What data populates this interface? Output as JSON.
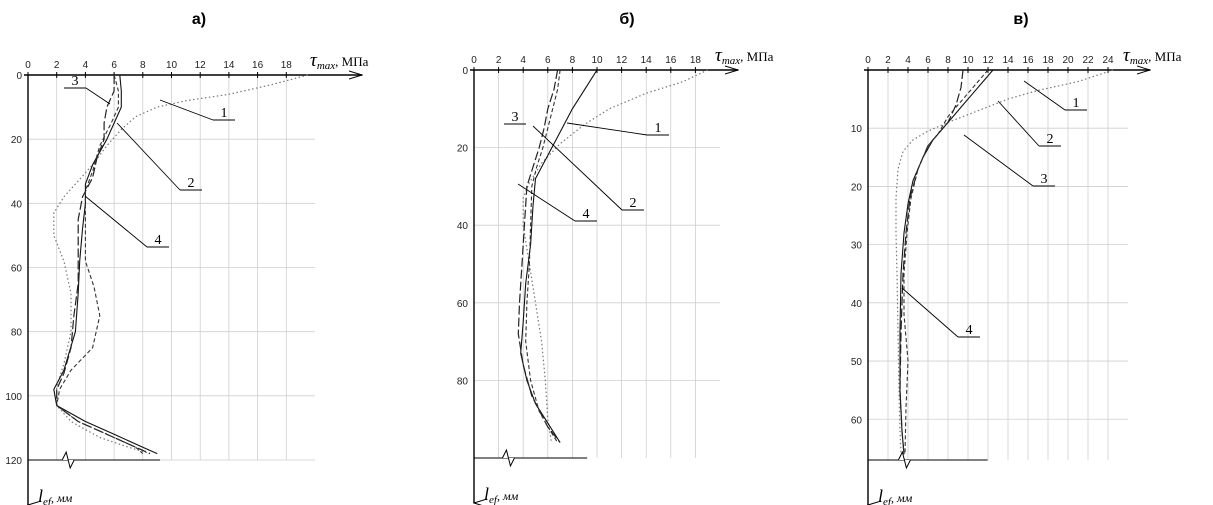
{
  "axes_text": {
    "x_symbol": "τ",
    "x_sub": "max",
    "x_unit": ", МПа",
    "y_symbol": "l",
    "y_sub": "ef",
    "y_unit": ", мм"
  },
  "chart_data": [
    {
      "type": "line",
      "title": "а)",
      "xlim": [
        0,
        20
      ],
      "ylim": [
        0,
        120
      ],
      "x_ticks": [
        0,
        2,
        4,
        6,
        8,
        10,
        12,
        14,
        16,
        18
      ],
      "y_ticks": [
        0,
        20,
        40,
        60,
        80,
        100,
        120
      ],
      "series": [
        {
          "name": "1",
          "points": [
            [
              19.5,
              0
            ],
            [
              17,
              3
            ],
            [
              14,
              6
            ],
            [
              11,
              8
            ],
            [
              9,
              10
            ],
            [
              7.5,
              13
            ],
            [
              6.5,
              17
            ],
            [
              5.5,
              22
            ],
            [
              4.5,
              28
            ],
            [
              3.5,
              33
            ],
            [
              2.5,
              38
            ],
            [
              1.8,
              43
            ],
            [
              1.8,
              50
            ],
            [
              2.5,
              58
            ],
            [
              3,
              68
            ],
            [
              3,
              80
            ],
            [
              2.5,
              90
            ],
            [
              2,
              97
            ],
            [
              2,
              103
            ],
            [
              3,
              108
            ],
            [
              5,
              113
            ],
            [
              7,
              116
            ],
            [
              8.5,
              118
            ]
          ]
        },
        {
          "name": "2",
          "points": [
            [
              6.4,
              0
            ],
            [
              6.5,
              5
            ],
            [
              6.5,
              10
            ],
            [
              6,
              15
            ],
            [
              5.5,
              20
            ],
            [
              4.5,
              28
            ],
            [
              4,
              34
            ],
            [
              4,
              40
            ],
            [
              3.8,
              48
            ],
            [
              3.6,
              58
            ],
            [
              3.5,
              68
            ],
            [
              3.3,
              80
            ],
            [
              2.5,
              92
            ],
            [
              1.8,
              98
            ],
            [
              2,
              103
            ],
            [
              4,
              108
            ],
            [
              6,
              112
            ],
            [
              8,
              116
            ],
            [
              9,
              118
            ]
          ]
        },
        {
          "name": "3",
          "points": [
            [
              6,
              0
            ],
            [
              6,
              5
            ],
            [
              5.5,
              10
            ],
            [
              5.3,
              15
            ],
            [
              5.3,
              20
            ],
            [
              4.8,
              26
            ],
            [
              4.5,
              32
            ],
            [
              3.8,
              38
            ],
            [
              3.5,
              45
            ],
            [
              3.5,
              55
            ],
            [
              3.5,
              65
            ],
            [
              3.2,
              75
            ],
            [
              3,
              85
            ],
            [
              2.5,
              93
            ],
            [
              2,
              98
            ],
            [
              2,
              103
            ],
            [
              3.5,
              108
            ],
            [
              5.5,
              112
            ],
            [
              7.5,
              116
            ],
            [
              8.5,
              118
            ]
          ]
        },
        {
          "name": "4",
          "points": [
            [
              6,
              0
            ],
            [
              6.3,
              5
            ],
            [
              6.3,
              10
            ],
            [
              5.8,
              15
            ],
            [
              5,
              22
            ],
            [
              4.5,
              30
            ],
            [
              4,
              36
            ],
            [
              4,
              42
            ],
            [
              4,
              50
            ],
            [
              4,
              58
            ],
            [
              4.6,
              66
            ],
            [
              5,
              75
            ],
            [
              4.5,
              85
            ],
            [
              3,
              92
            ],
            [
              2.2,
              98
            ],
            [
              2,
              103
            ],
            [
              3.5,
              108
            ],
            [
              5.5,
              112
            ],
            [
              7.5,
              116
            ],
            [
              8,
              118
            ]
          ]
        }
      ],
      "callouts": [
        "1",
        "2",
        "3",
        "4"
      ]
    },
    {
      "type": "line",
      "title": "б)",
      "xlim": [
        0,
        20
      ],
      "ylim": [
        0,
        100
      ],
      "x_ticks": [
        0,
        2,
        4,
        6,
        8,
        10,
        12,
        14,
        16,
        18
      ],
      "y_ticks": [
        0,
        20,
        40,
        60,
        80
      ],
      "series": [
        {
          "name": "1",
          "points": [
            [
              19,
              0
            ],
            [
              17,
              3
            ],
            [
              14,
              6
            ],
            [
              11,
              10
            ],
            [
              9,
              14
            ],
            [
              7,
              19
            ],
            [
              5.5,
              24
            ],
            [
              4.5,
              29
            ],
            [
              4,
              33
            ],
            [
              4,
              40
            ],
            [
              4.5,
              50
            ],
            [
              5,
              60
            ],
            [
              5.5,
              70
            ],
            [
              5.8,
              80
            ],
            [
              6,
              90
            ],
            [
              6.3,
              96
            ]
          ]
        },
        {
          "name": "2",
          "points": [
            [
              10,
              0
            ],
            [
              9,
              5
            ],
            [
              8,
              10
            ],
            [
              7,
              16
            ],
            [
              6,
              22
            ],
            [
              5,
              28
            ],
            [
              4.8,
              35
            ],
            [
              4.6,
              45
            ],
            [
              4.2,
              55
            ],
            [
              4,
              65
            ],
            [
              3.8,
              73
            ],
            [
              4.3,
              80
            ],
            [
              5,
              86
            ],
            [
              6,
              91
            ],
            [
              7,
              96
            ]
          ]
        },
        {
          "name": "3",
          "points": [
            [
              6.8,
              0
            ],
            [
              6.5,
              5
            ],
            [
              6,
              10
            ],
            [
              5.7,
              15
            ],
            [
              5.3,
              20
            ],
            [
              4.8,
              25
            ],
            [
              4.3,
              30
            ],
            [
              4.1,
              40
            ],
            [
              3.9,
              50
            ],
            [
              3.7,
              60
            ],
            [
              3.6,
              68
            ],
            [
              4,
              76
            ],
            [
              4.7,
              84
            ],
            [
              6,
              92
            ],
            [
              7,
              96
            ]
          ]
        },
        {
          "name": "4",
          "points": [
            [
              7,
              0
            ],
            [
              6.8,
              5
            ],
            [
              6.4,
              10
            ],
            [
              6,
              15
            ],
            [
              5.6,
              20
            ],
            [
              5.1,
              25
            ],
            [
              4.7,
              30
            ],
            [
              4.6,
              40
            ],
            [
              4.5,
              50
            ],
            [
              4.3,
              60
            ],
            [
              4.2,
              70
            ],
            [
              4.6,
              80
            ],
            [
              5.3,
              88
            ],
            [
              6.2,
              93
            ],
            [
              6.8,
              96
            ]
          ]
        }
      ],
      "callouts": [
        "1",
        "2",
        "3",
        "4"
      ]
    },
    {
      "type": "line",
      "title": "в)",
      "xlim": [
        0,
        26
      ],
      "ylim": [
        0,
        67
      ],
      "x_ticks": [
        0,
        2,
        4,
        6,
        8,
        10,
        12,
        14,
        16,
        18,
        20,
        22,
        24
      ],
      "y_ticks": [
        10,
        20,
        30,
        40,
        50,
        60
      ],
      "series": [
        {
          "name": "1",
          "points": [
            [
              24.5,
              0
            ],
            [
              21,
              2
            ],
            [
              17,
              3.5
            ],
            [
              14,
              5
            ],
            [
              11,
              7
            ],
            [
              8,
              9
            ],
            [
              6,
              10.5
            ],
            [
              4.5,
              12
            ],
            [
              3.5,
              14
            ],
            [
              3,
              17
            ],
            [
              2.8,
              22
            ],
            [
              2.8,
              28
            ],
            [
              2.9,
              35
            ],
            [
              3,
              45
            ],
            [
              3.1,
              55
            ],
            [
              3.2,
              62
            ],
            [
              3.3,
              66
            ]
          ]
        },
        {
          "name": "2",
          "points": [
            [
              12.5,
              0
            ],
            [
              11.5,
              2
            ],
            [
              10.5,
              4
            ],
            [
              9.5,
              6
            ],
            [
              8.5,
              8
            ],
            [
              7.5,
              10
            ],
            [
              6.5,
              12
            ],
            [
              5.5,
              15
            ],
            [
              4.5,
              19
            ],
            [
              4,
              23
            ],
            [
              3.6,
              28
            ],
            [
              3.3,
              35
            ],
            [
              3.2,
              45
            ],
            [
              3.2,
              55
            ],
            [
              3.4,
              62
            ],
            [
              3.6,
              66
            ]
          ]
        },
        {
          "name": "3",
          "points": [
            [
              9.5,
              0
            ],
            [
              9.3,
              3
            ],
            [
              8.8,
              6
            ],
            [
              8,
              9
            ],
            [
              7,
              11
            ],
            [
              6,
              13
            ],
            [
              5,
              17
            ],
            [
              4.2,
              22
            ],
            [
              3.8,
              28
            ],
            [
              3.5,
              35
            ],
            [
              3.3,
              45
            ],
            [
              3.2,
              55
            ],
            [
              3.4,
              62
            ],
            [
              3.6,
              66
            ]
          ]
        },
        {
          "name": "4",
          "points": [
            [
              12,
              0
            ],
            [
              11,
              2
            ],
            [
              10,
              4
            ],
            [
              9,
              6
            ],
            [
              8,
              8
            ],
            [
              7,
              11
            ],
            [
              6,
              13
            ],
            [
              5,
              17
            ],
            [
              4.3,
              22
            ],
            [
              3.9,
              28
            ],
            [
              3.6,
              35
            ],
            [
              3.6,
              42
            ],
            [
              4,
              50
            ],
            [
              3.8,
              58
            ],
            [
              3.7,
              66
            ]
          ]
        }
      ],
      "callouts": [
        "1",
        "2",
        "3",
        "4"
      ]
    }
  ]
}
